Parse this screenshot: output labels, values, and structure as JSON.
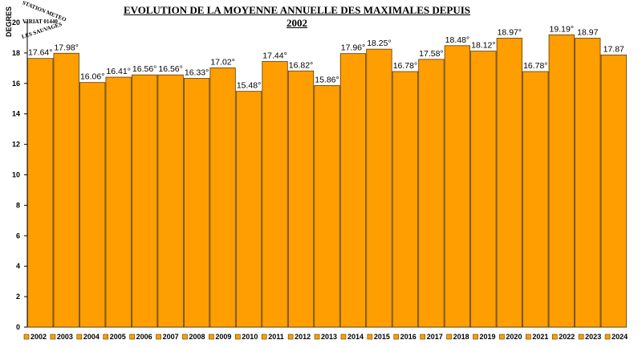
{
  "chart_data": {
    "type": "bar",
    "title": "EVOLUTION DE LA MOYENNE ANNUELLE DES MAXIMALES DEPUIS 2002",
    "ylabel": "DEGRES",
    "xlabel": "",
    "ylim": [
      0,
      20
    ],
    "yticks": [
      0,
      2,
      4,
      6,
      8,
      10,
      12,
      14,
      16,
      18,
      20
    ],
    "grid": false,
    "legend_position": "bottom",
    "bar_color": "#FF9E00",
    "categories": [
      "2002",
      "2003",
      "2004",
      "2005",
      "2006",
      "2007",
      "2008",
      "2009",
      "2010",
      "2011",
      "2012",
      "2013",
      "2014",
      "2015",
      "2016",
      "2017",
      "2018",
      "2019",
      "2020",
      "2021",
      "2022",
      "2023",
      "2024"
    ],
    "values": [
      17.64,
      17.98,
      16.06,
      16.41,
      16.56,
      16.56,
      16.33,
      17.02,
      15.48,
      17.44,
      16.82,
      15.86,
      17.96,
      18.25,
      16.78,
      17.58,
      18.48,
      18.12,
      18.97,
      16.78,
      19.19,
      18.97,
      17.87
    ],
    "data_labels": [
      "17.64°",
      "17.98°",
      "16.06°",
      "16.41°",
      "16.56°",
      "16.56°",
      "16.33°",
      "17.02°",
      "15.48°",
      "17.44°",
      "16.82°",
      "15.86°",
      "17.96°",
      "18.25°",
      "16.78°",
      "17.58°",
      "18.48°",
      "18.12°",
      "18.97°",
      "16.78°",
      "19.19°",
      "18.97",
      "17.87"
    ]
  },
  "stamp": {
    "line1": "STATION METEO",
    "line2": "VIRIAT 01440",
    "line3": "LES SAUVAGES"
  }
}
